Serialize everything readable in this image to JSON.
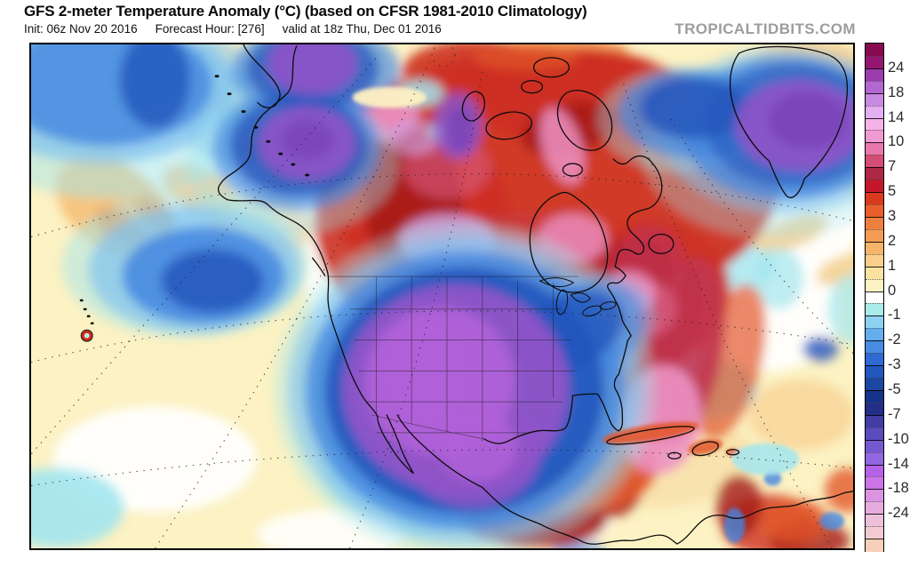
{
  "header": {
    "title": "GFS 2-meter Temperature Anomaly (°C) (based on CFSR 1981-2010 Climatology)",
    "init_label": "Init: 06z Nov 20 2016",
    "forecast_label": "Forecast Hour: [276]",
    "valid_label": "valid at 18z Thu, Dec 01 2016",
    "watermark": "TROPICALTIDBITS.COM"
  },
  "colorbar": {
    "labels": [
      "24",
      "18",
      "14",
      "10",
      "7",
      "5",
      "3",
      "2",
      "1",
      "0",
      "-1",
      "-2",
      "-3",
      "-5",
      "-7",
      "-10",
      "-14",
      "-18",
      "-24"
    ],
    "colors": [
      "#870a51",
      "#951670",
      "#9c3cae",
      "#b268d0",
      "#c98ae2",
      "#e3aef2",
      "#f5b2e8",
      "#f09ad2",
      "#e878ab",
      "#d44d76",
      "#ae2745",
      "#c4182a",
      "#d93a1e",
      "#e85f2b",
      "#ef7f3e",
      "#f49c55",
      "#f7b369",
      "#fbce8b",
      "#fce29f",
      "#fdf2c4",
      "#ffffff",
      "#aaeae8",
      "#8ed2f2",
      "#64adee",
      "#478ce2",
      "#2f6ad4",
      "#2257bd",
      "#1a47a2",
      "#143389",
      "#232e88",
      "#423da5",
      "#5a4cbd",
      "#7458d0",
      "#9166e0",
      "#b561ea",
      "#cb74e8",
      "#db93e2",
      "#e5abde",
      "#edc0da",
      "#f2cbd2",
      "#f6d0b8"
    ],
    "label_color": "#2b2b2b",
    "outline_color": "#000000"
  },
  "map": {
    "background": "#fcf2c3",
    "border_color": "#000000",
    "coastline_color": "#0c0c0c",
    "state_border_color": "#1c1c1c",
    "graticule_color": "#222222",
    "palette": {
      "white": "#ffffff",
      "cream": "#fdf0c2",
      "tan": "#f3d095",
      "pale_orange": "#f8c27a",
      "orange": "#f08c44",
      "orange_red": "#e2572b",
      "red": "#cd3020",
      "dark_red": "#a41818",
      "mauve": "#c23550",
      "rose": "#d95f84",
      "pink": "#ec92c4",
      "lavender": "#cf9ede",
      "purple": "#9053c8",
      "magenta": "#b062d8",
      "deep_violet": "#7a44b8",
      "dark_blue": "#2456bc",
      "blue": "#4487e0",
      "light_blue": "#7fc2f0",
      "cyan": "#a2e5ee",
      "hawaii_ring_red": "#cf2a10"
    }
  }
}
